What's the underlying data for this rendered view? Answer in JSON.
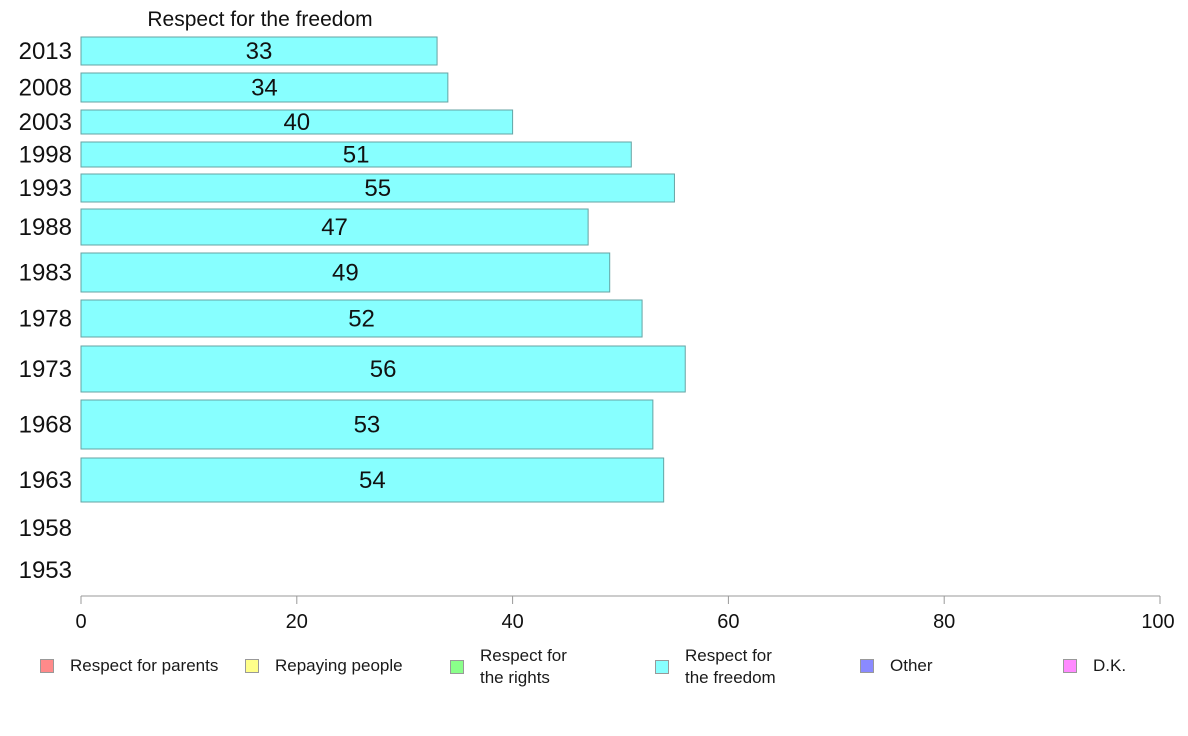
{
  "chart_data": {
    "type": "bar",
    "orientation": "horizontal",
    "title": "Respect for the freedom",
    "categories": [
      "2013",
      "2008",
      "2003",
      "1998",
      "1993",
      "1988",
      "1983",
      "1978",
      "1973",
      "1968",
      "1963",
      "1958",
      "1953"
    ],
    "values": [
      33,
      34,
      40,
      51,
      55,
      47,
      49,
      52,
      56,
      53,
      54,
      null,
      null
    ],
    "bar_color": "#87ffff",
    "bar_stroke": "#66a3a3",
    "xlim": [
      0,
      100
    ],
    "xticks": [
      "0",
      "20",
      "40",
      "60",
      "80",
      "100"
    ],
    "legend": [
      {
        "label": "Respect for parents",
        "color": "#ff8a8a"
      },
      {
        "label": "Repaying people",
        "color": "#ffff8a"
      },
      {
        "label": "Respect for\nthe rights",
        "color": "#8aff8a"
      },
      {
        "label": "Respect for\nthe freedom",
        "color": "#87ffff"
      },
      {
        "label": "Other",
        "color": "#8a8aff"
      },
      {
        "label": "D.K.",
        "color": "#ff8aff"
      }
    ],
    "legend_position": "bottom"
  }
}
